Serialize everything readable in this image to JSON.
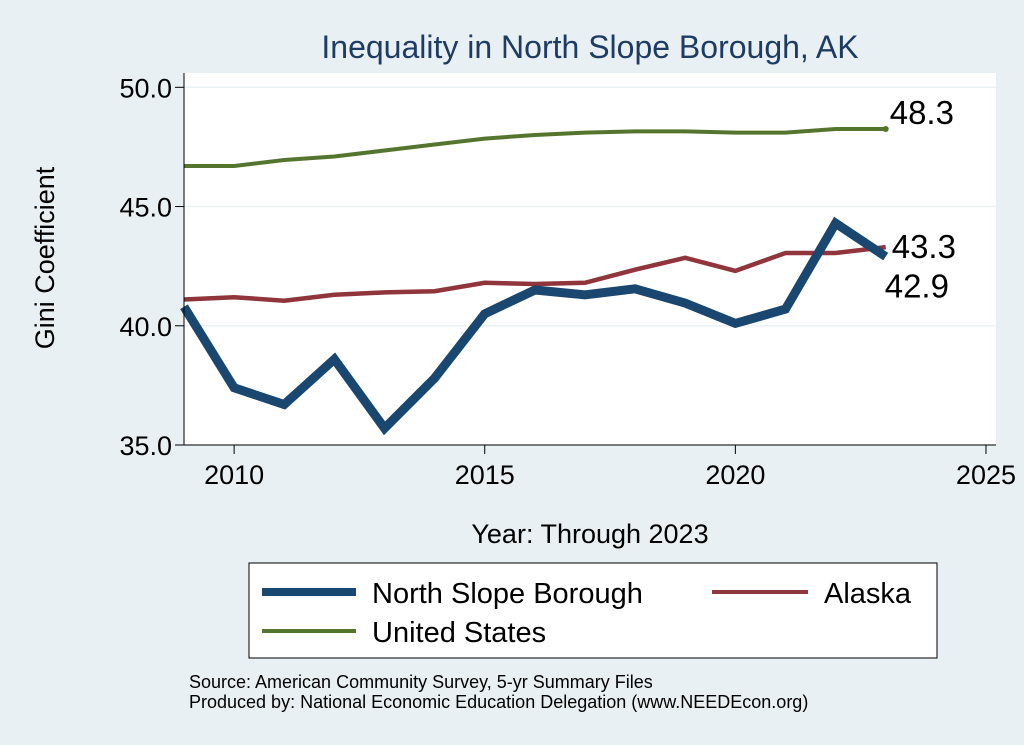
{
  "chart_data": {
    "type": "line",
    "title": "Inequality in North Slope Borough, AK",
    "xlabel": "Year: Through 2023",
    "ylabel": "Gini Coefficient",
    "xlim": [
      2009,
      2025.2
    ],
    "ylim": [
      35.0,
      50.6
    ],
    "xticks": [
      2010,
      2015,
      2020,
      2025
    ],
    "yticks": [
      35.0,
      40.0,
      45.0,
      50.0
    ],
    "ytick_labels": [
      "35.0",
      "40.0",
      "45.0",
      "50.0"
    ],
    "grid": true,
    "series": [
      {
        "name": "North Slope Borough",
        "color": "#1a476f",
        "x": [
          2009,
          2010,
          2011,
          2012,
          2013,
          2014,
          2015,
          2016,
          2017,
          2018,
          2019,
          2020,
          2021,
          2022,
          2023
        ],
        "values": [
          40.8,
          37.4,
          36.7,
          38.6,
          35.7,
          37.8,
          40.5,
          41.5,
          41.3,
          41.55,
          40.95,
          40.1,
          40.7,
          44.3,
          42.9
        ],
        "end_label": "42.9"
      },
      {
        "name": "Alaska",
        "color": "#90353b",
        "x": [
          2009,
          2010,
          2011,
          2012,
          2013,
          2014,
          2015,
          2016,
          2017,
          2018,
          2019,
          2020,
          2021,
          2022,
          2023
        ],
        "values": [
          41.1,
          41.2,
          41.05,
          41.3,
          41.4,
          41.45,
          41.8,
          41.75,
          41.8,
          42.35,
          42.85,
          42.3,
          43.05,
          43.05,
          43.3
        ],
        "end_label": "43.3"
      },
      {
        "name": "United States",
        "color": "#55752f",
        "x": [
          2009,
          2010,
          2011,
          2012,
          2013,
          2014,
          2015,
          2016,
          2017,
          2018,
          2019,
          2020,
          2021,
          2022,
          2023
        ],
        "values": [
          46.7,
          46.7,
          46.95,
          47.1,
          47.35,
          47.6,
          47.85,
          48.0,
          48.1,
          48.15,
          48.15,
          48.1,
          48.1,
          48.25,
          48.25
        ],
        "end_label": "48.3"
      }
    ],
    "legend": {
      "position": "bottom",
      "entries": [
        "North Slope Borough",
        "Alaska",
        "United States"
      ]
    },
    "notes": [
      "Source: American Community Survey, 5-yr Summary Files",
      "Produced by: National Economic Education Delegation (www.NEEDEcon.org)"
    ]
  }
}
